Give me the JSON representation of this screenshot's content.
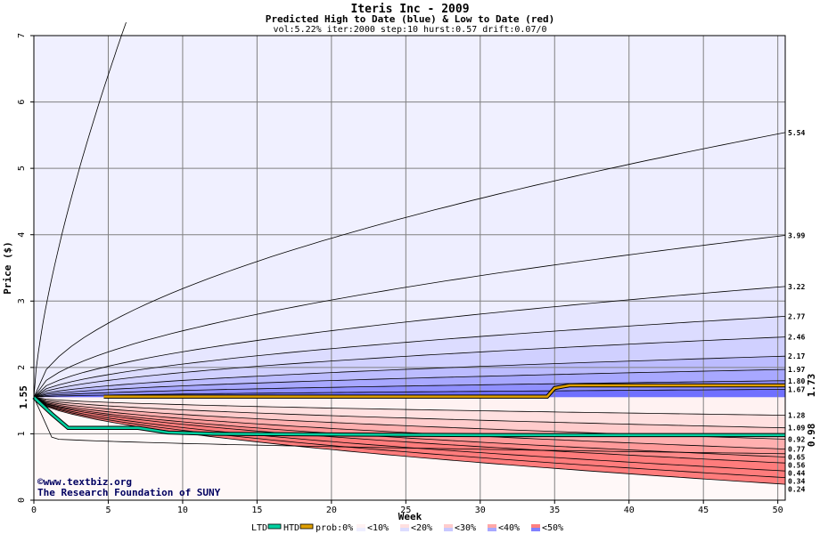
{
  "chart_data": {
    "type": "area",
    "title": "Iteris Inc - 2009",
    "subtitle": "Predicted High to Date (blue) &  Low to Date (red)",
    "params": "vol:5.22% iter:2000 step:10 hurst:0.57 drift:0.07/0",
    "xlabel": "Week",
    "ylabel": "Price ($)",
    "xlim": [
      0,
      50.5
    ],
    "ylim": [
      0,
      7
    ],
    "x_ticks": [
      0,
      5,
      10,
      15,
      20,
      25,
      30,
      35,
      40,
      45,
      50
    ],
    "y_ticks": [
      0,
      1,
      2,
      3,
      4,
      5,
      6,
      7
    ],
    "start_price": 1.55,
    "start_label": "1.55",
    "grid": true,
    "high_curves_end": [
      1.67,
      1.8,
      1.97,
      2.17,
      2.46,
      2.77,
      3.22,
      3.99,
      5.54
    ],
    "low_curves_end": [
      1.28,
      1.09,
      0.92,
      0.77,
      0.65,
      0.56,
      0.44,
      0.34,
      0.24
    ],
    "right_labels": [
      "5.54",
      "3.99",
      "3.22",
      "2.77",
      "2.46",
      "2.17",
      "1.97",
      "1.80",
      "1.67",
      "1.28",
      "1.09",
      "0.92",
      "0.77",
      "0.65",
      "0.56",
      "0.44",
      "0.34",
      "0.24"
    ],
    "htd_series": {
      "x": [
        4.7,
        34.5,
        35,
        36,
        50.5
      ],
      "values": [
        1.56,
        1.56,
        1.69,
        1.73,
        1.73
      ],
      "end_label": "1.73",
      "color": "#e0a000"
    },
    "ltd_series": {
      "x": [
        0,
        1.2,
        2.3,
        7.0,
        9.0,
        12,
        20,
        30,
        40,
        50.5
      ],
      "values": [
        1.55,
        1.3,
        1.09,
        1.09,
        1.02,
        1.0,
        0.99,
        0.98,
        0.98,
        0.98
      ],
      "end_label": "0.98",
      "color": "#00d0a0"
    },
    "legend": {
      "ltd": "LTD",
      "htd": "HTD",
      "prob": "prob:0%",
      "bins": [
        "<10%",
        "<20%",
        "<30%",
        "<40%",
        "<50%"
      ]
    },
    "colors": {
      "high_fills": [
        "#7070ff",
        "#9090ff",
        "#a8a8ff",
        "#bcbcff",
        "#d0d0ff",
        "#dcdcff",
        "#e6e6ff",
        "#eeeeff"
      ],
      "low_fills": [
        "#fff2f2",
        "#ffe0e0",
        "#ffcccc",
        "#ffb0b0",
        "#ff9a9a",
        "#ff8a8a",
        "#ff7c7c"
      ],
      "outer_high": "#f0f0ff",
      "outer_low": "#fff8f8",
      "grid": "#808080"
    }
  },
  "watermark": {
    "line1": "©www.textbiz.org",
    "line2": "The Research Foundation of SUNY"
  }
}
